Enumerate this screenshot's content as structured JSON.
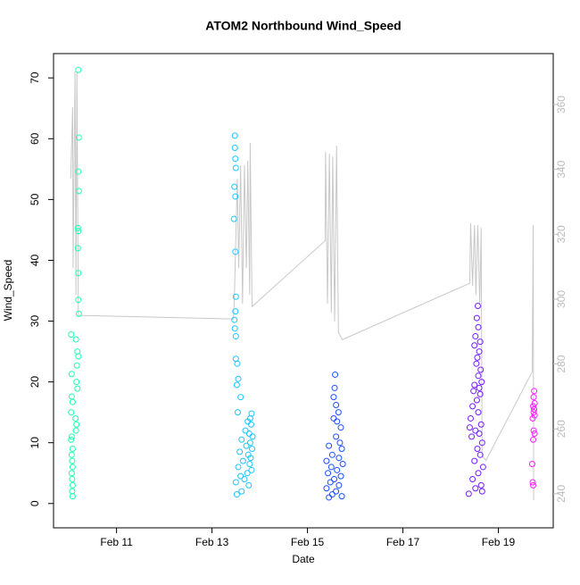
{
  "chart_data": {
    "type": "scatter",
    "title": "ATOM2 Northbound Wind_Speed",
    "xlabel": "Date",
    "ylabel": "Wind_Speed",
    "xlim": [
      9.68,
      20.15
    ],
    "xticks": [
      {
        "value": 11,
        "label": "Feb 11"
      },
      {
        "value": 13,
        "label": "Feb 13"
      },
      {
        "value": 15,
        "label": "Feb 15"
      },
      {
        "value": 17,
        "label": "Feb 17"
      },
      {
        "value": 19,
        "label": "Feb 19"
      }
    ],
    "ylim": [
      -4,
      74
    ],
    "yticks": [
      0,
      10,
      20,
      30,
      40,
      50,
      60,
      70
    ],
    "y2lim": [
      229.5,
      375.7
    ],
    "y2ticks": [
      240,
      260,
      280,
      300,
      320,
      340,
      360
    ],
    "series": [
      {
        "color": "#1affb2",
        "x": [
          10.2,
          10.21,
          10.2,
          10.21,
          10.19,
          10.2,
          10.19,
          10.2,
          10.2,
          10.21,
          10.05,
          10.15,
          10.18,
          10.2,
          10.17,
          10.06,
          10.16,
          10.18,
          10.06,
          10.08,
          10.05,
          10.14,
          10.16,
          10.15,
          10.06,
          10.05,
          10.08,
          10.06,
          10.07,
          10.08,
          10.06,
          10.07,
          10.08,
          10.07,
          10.08
        ],
        "values": [
          71.3,
          60.2,
          54.6,
          51.4,
          45.3,
          44.8,
          42,
          37.9,
          33.5,
          31.2,
          27.8,
          27,
          25,
          24.2,
          22.7,
          21.3,
          20,
          18.9,
          17.6,
          16.7,
          15,
          14,
          13,
          12,
          11,
          10.5,
          9,
          8,
          7,
          6,
          5,
          4,
          3,
          2,
          1.2
        ]
      },
      {
        "color": "#1ac6ff",
        "x": [
          13.48,
          13.48,
          13.49,
          13.5,
          13.47,
          13.49,
          13.46,
          13.49,
          13.5,
          13.49,
          13.47,
          13.48,
          13.5,
          13.5,
          13.53,
          13.55,
          13.52,
          13.6,
          13.54,
          13.83,
          13.8,
          13.75,
          13.82,
          13.7,
          13.78,
          13.85,
          13.62,
          13.8,
          13.72,
          13.84,
          13.58,
          13.76,
          13.81,
          13.65,
          13.79,
          13.55,
          13.83,
          13.74,
          13.6,
          13.68,
          13.5,
          13.77,
          13.62,
          13.52
        ],
        "values": [
          60.5,
          58.5,
          56.7,
          55.2,
          52.1,
          50.5,
          46.8,
          41.4,
          34,
          31.6,
          30.2,
          28.8,
          27.5,
          23.8,
          23,
          20.5,
          19.5,
          17.5,
          15,
          14.8,
          14,
          13.5,
          13,
          12,
          11.5,
          11,
          10.5,
          10,
          9.5,
          9,
          8.5,
          8,
          7.5,
          7,
          6.5,
          6,
          5.5,
          5,
          4.5,
          4,
          3.5,
          3,
          2,
          1.5
        ]
      },
      {
        "color": "#1a4dff",
        "x": [
          15.58,
          15.57,
          15.55,
          15.6,
          15.65,
          15.55,
          15.62,
          15.7,
          15.6,
          15.68,
          15.45,
          15.72,
          15.52,
          15.66,
          15.4,
          15.74,
          15.5,
          15.62,
          15.43,
          15.7,
          15.56,
          15.48,
          15.66,
          15.4,
          15.6,
          15.52,
          15.72,
          15.45
        ],
        "values": [
          21.2,
          19,
          17.5,
          16.2,
          15,
          14,
          13.5,
          12.5,
          11,
          10,
          9.5,
          9,
          8,
          7.5,
          7,
          6.5,
          6,
          5.5,
          5,
          4.5,
          4,
          3.5,
          3,
          2.5,
          2,
          1.5,
          1.2,
          1
        ]
      },
      {
        "color": "#751aff",
        "x": [
          18.57,
          18.55,
          18.58,
          18.52,
          18.62,
          18.5,
          18.6,
          18.56,
          18.54,
          18.63,
          18.58,
          18.65,
          18.5,
          18.6,
          18.48,
          18.62,
          18.55,
          18.46,
          18.58,
          18.42,
          18.64,
          18.4,
          18.52,
          18.6,
          18.44,
          18.66,
          18.56,
          18.62,
          18.5,
          18.68,
          18.58,
          18.46,
          18.64,
          18.52,
          18.66,
          18.38
        ],
        "values": [
          32.5,
          30.5,
          29,
          27.5,
          26.6,
          26,
          25,
          24,
          23,
          22,
          21,
          20,
          19.5,
          19,
          18.5,
          18,
          17,
          16,
          15,
          14,
          13,
          12.5,
          12,
          11.5,
          11,
          10,
          9,
          8,
          7,
          6,
          5,
          4,
          3,
          2.5,
          2,
          1.6
        ]
      },
      {
        "color": "#ff1aff",
        "x": [
          19.75,
          19.74,
          19.76,
          19.73,
          19.75,
          19.74,
          19.76,
          19.72,
          19.74,
          19.76,
          19.73,
          19.71,
          19.72,
          19.73
        ],
        "values": [
          18.5,
          17.5,
          16.5,
          16,
          15.5,
          15,
          14.5,
          14,
          12,
          11.5,
          10.5,
          6.5,
          3.5,
          3
        ]
      },
      {
        "color": "#c8c8c8",
        "axis": "y2",
        "x": [
          10.04,
          10.08,
          10.09,
          10.13,
          10.15,
          10.17,
          10.2,
          13.45,
          13.47,
          13.53,
          13.56,
          13.6,
          13.64,
          13.68,
          13.72,
          13.75,
          13.79,
          13.8,
          13.84,
          15.37,
          15.38,
          15.42,
          15.46,
          15.5,
          15.53,
          15.57,
          15.61,
          15.65,
          15.73,
          18.4,
          18.42,
          18.46,
          18.5,
          18.53,
          18.57,
          18.61,
          18.64,
          18.66,
          18.74,
          19.71,
          19.73,
          19.74
        ],
        "values": [
          337.1,
          359.2,
          309.6,
          370.2,
          301.3,
          370.2,
          295.0,
          293.9,
          301.3,
          337.1,
          309.6,
          341.3,
          298.6,
          341.3,
          309.6,
          342.7,
          301.3,
          348.2,
          297.7,
          318.0,
          345.4,
          298.6,
          344.8,
          295.8,
          344.0,
          293.1,
          347.3,
          289.8,
          287.5,
          304.9,
          323.4,
          304.1,
          322.8,
          301.3,
          322.8,
          298.6,
          322.0,
          251.7,
          250.3,
          277.6,
          322.8,
          238.0
        ]
      }
    ]
  }
}
